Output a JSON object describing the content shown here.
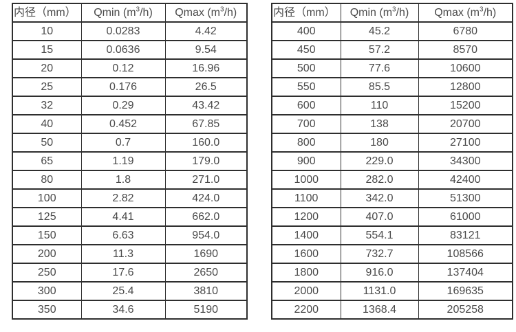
{
  "page": {
    "background_color": "#ffffff",
    "text_color": "#4a4a4a",
    "border_color": "#2e2e2e"
  },
  "tables": [
    {
      "id": "small-diameter-flow-table",
      "headers": {
        "diameter": "内径（mm）",
        "qmin": {
          "pre": "Qmin (m",
          "sup": "3",
          "post": "/h)"
        },
        "qmax": {
          "pre": "Qmax (m",
          "sup": "3",
          "post": "/h)"
        }
      },
      "rows": [
        [
          "10",
          "0.0283",
          "4.42"
        ],
        [
          "15",
          "0.0636",
          "9.54"
        ],
        [
          "20",
          "0.12",
          "16.96"
        ],
        [
          "25",
          "0.176",
          "26.5"
        ],
        [
          "32",
          "0.29",
          "43.42"
        ],
        [
          "40",
          "0.452",
          "67.85"
        ],
        [
          "50",
          "0.7",
          "160.0"
        ],
        [
          "65",
          "1.19",
          "179.0"
        ],
        [
          "80",
          "1.8",
          "271.0"
        ],
        [
          "100",
          "2.82",
          "424.0"
        ],
        [
          "125",
          "4.41",
          "662.0"
        ],
        [
          "150",
          "6.63",
          "954.0"
        ],
        [
          "200",
          "11.3",
          "1690"
        ],
        [
          "250",
          "17.6",
          "2650"
        ],
        [
          "300",
          "25.4",
          "3810"
        ],
        [
          "350",
          "34.6",
          "5190"
        ]
      ]
    },
    {
      "id": "large-diameter-flow-table",
      "headers": {
        "diameter": "内径（mm）",
        "qmin": {
          "pre": "Qmin (m",
          "sup": "3",
          "post": "/h)"
        },
        "qmax": {
          "pre": "Qmax (m",
          "sup": "3",
          "post": "/h)"
        }
      },
      "rows": [
        [
          "400",
          "45.2",
          "6780"
        ],
        [
          "450",
          "57.2",
          "8570"
        ],
        [
          "500",
          "77.6",
          "10600"
        ],
        [
          "550",
          "85.5",
          "12800"
        ],
        [
          "600",
          "110",
          "15200"
        ],
        [
          "700",
          "138",
          "20700"
        ],
        [
          "800",
          "180",
          "27100"
        ],
        [
          "900",
          "229.0",
          "34300"
        ],
        [
          "1000",
          "282.0",
          "42400"
        ],
        [
          "1100",
          "342.0",
          "51300"
        ],
        [
          "1200",
          "407.0",
          "61000"
        ],
        [
          "1400",
          "554.1",
          "83121"
        ],
        [
          "1600",
          "732.7",
          "108566"
        ],
        [
          "1800",
          "916.0",
          "137404"
        ],
        [
          "2000",
          "1131.0",
          "169635"
        ],
        [
          "2200",
          "1368.4",
          "205258"
        ]
      ]
    }
  ]
}
